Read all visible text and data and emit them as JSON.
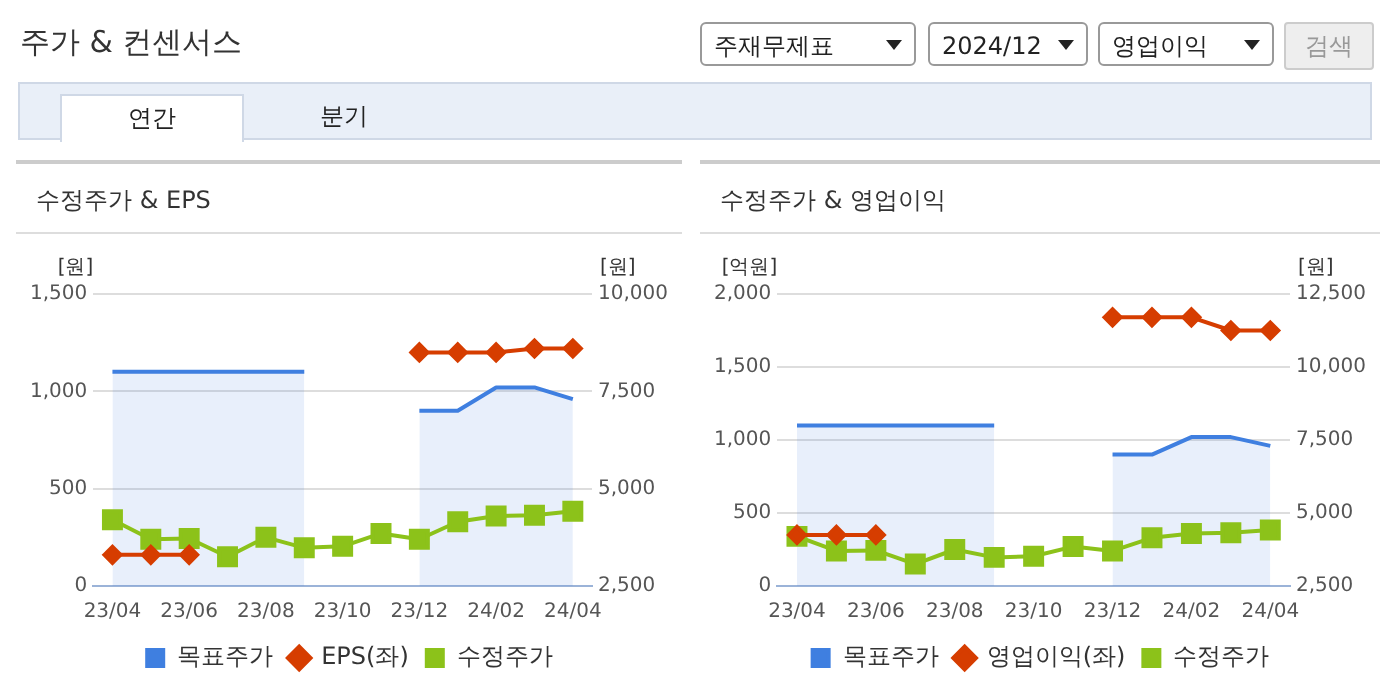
{
  "chart_data": [
    {
      "type": "line",
      "title": "수정주가 & EPS",
      "ylabel": "[원]",
      "y2label": "[원]",
      "grid": "y",
      "legend": "bottom",
      "annotations": [
        "주가 & 컨센서스",
        "주재무제표",
        "2024/12",
        "영업이익",
        "검색",
        "연간",
        "분기"
      ],
      "categories": [
        "23/04",
        null,
        "23/06",
        null,
        "23/08",
        null,
        "23/10",
        null,
        "23/12",
        null,
        "24/02",
        null,
        "24/04"
      ],
      "ylim": [
        0,
        1500
      ],
      "yticks": [
        {
          "value": 0,
          "label": "0"
        },
        {
          "value": 500,
          "label": "500"
        },
        {
          "value": 1000,
          "label": "1,000"
        },
        {
          "value": 1500,
          "label": "1,500"
        }
      ],
      "y2lim": [
        2500,
        10000
      ],
      "y2ticks": [
        {
          "value": 2500,
          "label": "2,500"
        },
        {
          "value": 5000,
          "label": "5,000"
        },
        {
          "value": 7500,
          "label": "7,500"
        },
        {
          "value": 10000,
          "label": "10,000"
        }
      ],
      "series": [
        {
          "name": "목표주가",
          "type": "area",
          "axis": "y2",
          "color": "#3f7fe0",
          "marker": "none",
          "values": [
            8000,
            8000,
            8000,
            8000,
            8000,
            8000,
            null,
            null,
            7000,
            7000,
            7600,
            7600,
            7300
          ]
        },
        {
          "name": "EPS(좌)",
          "type": "line",
          "color": "#d63d00",
          "marker": "diamond",
          "values": [
            160,
            160,
            160,
            null,
            null,
            null,
            null,
            null,
            1200,
            1200,
            1200,
            1220,
            1220
          ]
        },
        {
          "name": "수정주가",
          "type": "line",
          "axis": "y2",
          "color": "#8cc21a",
          "marker": "square",
          "values": [
            4200,
            3700,
            3720,
            3250,
            3750,
            3480,
            3520,
            3850,
            3700,
            4150,
            4300,
            4320,
            4420
          ]
        }
      ]
    },
    {
      "type": "line",
      "title": "수정주가 & 영업이익",
      "ylabel": "[억원]",
      "y2label": "[원]",
      "grid": "y",
      "legend": "bottom",
      "categories": [
        "23/04",
        null,
        "23/06",
        null,
        "23/08",
        null,
        "23/10",
        null,
        "23/12",
        null,
        "24/02",
        null,
        "24/04"
      ],
      "ylim": [
        0,
        2000
      ],
      "yticks": [
        {
          "value": 0,
          "label": "0"
        },
        {
          "value": 500,
          "label": "500"
        },
        {
          "value": 1000,
          "label": "1,000"
        },
        {
          "value": 1500,
          "label": "1,500"
        },
        {
          "value": 2000,
          "label": "2,000"
        }
      ],
      "y2lim": [
        2500,
        12500
      ],
      "y2ticks": [
        {
          "value": 2500,
          "label": "2,500"
        },
        {
          "value": 5000,
          "label": "5,000"
        },
        {
          "value": 7500,
          "label": "7,500"
        },
        {
          "value": 10000,
          "label": "10,000"
        },
        {
          "value": 12500,
          "label": "12,500"
        }
      ],
      "series": [
        {
          "name": "목표주가",
          "type": "area",
          "axis": "y2",
          "color": "#3f7fe0",
          "marker": "none",
          "values": [
            8000,
            8000,
            8000,
            8000,
            8000,
            8000,
            null,
            null,
            7000,
            7000,
            7600,
            7600,
            7300
          ]
        },
        {
          "name": "영업이익(좌)",
          "type": "line",
          "color": "#d63d00",
          "marker": "diamond",
          "values": [
            350,
            350,
            350,
            null,
            null,
            null,
            null,
            null,
            1840,
            1840,
            1840,
            1750,
            1750
          ]
        },
        {
          "name": "수정주가",
          "type": "line",
          "axis": "y2",
          "color": "#8cc21a",
          "marker": "square",
          "values": [
            4200,
            3700,
            3720,
            3250,
            3750,
            3480,
            3520,
            3850,
            3700,
            4150,
            4300,
            4320,
            4420
          ]
        }
      ]
    }
  ]
}
